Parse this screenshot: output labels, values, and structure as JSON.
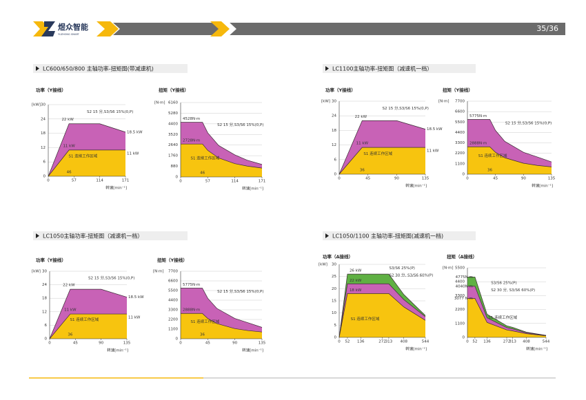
{
  "header": {
    "brand": "煜众智能",
    "brand_en": "YUZHONG SMART",
    "page": "35/36"
  },
  "sections": [
    {
      "title": "LC600/650/800 主轴功率-扭矩图(带减速机)"
    },
    {
      "title": "LC1100主轴功率-扭矩图（减速机一档）"
    },
    {
      "title": "LC1050主轴功率-扭矩图（减速机一档）"
    },
    {
      "title": "LC1050/1100 主轴功率-扭矩图(减速机一档)"
    }
  ],
  "chart_data": [
    {
      "type": "area",
      "title": "功率（Y接线）",
      "y_unit": "[kW]",
      "x_label": "转速[min⁻¹]",
      "x": [
        0,
        46,
        114,
        171
      ],
      "xlim": [
        0,
        171
      ],
      "xticks": [
        0,
        57,
        114,
        171
      ],
      "ylim": [
        0,
        30
      ],
      "yticks": [
        0,
        6,
        12,
        18,
        24,
        30
      ],
      "grid": true,
      "series": [
        {
          "name": "S2 15 分,S3/S6 15%(0,P)",
          "color": "#c862b6",
          "values": [
            0,
            22,
            22,
            18.5
          ]
        },
        {
          "name": "S1 连续工作区域",
          "color": "#f7c40f",
          "values": [
            0,
            11,
            11,
            11
          ]
        }
      ],
      "annotations": [
        "22 kW",
        "18.5 kW",
        "11 kW",
        "11 kW",
        "46"
      ]
    },
    {
      "type": "area",
      "title": "扭矩（Y接线）",
      "y_unit": "[N·m]",
      "x_label": "转速[min⁻¹]",
      "x": [
        0,
        46,
        57,
        80,
        114,
        140,
        171
      ],
      "xlim": [
        0,
        171
      ],
      "xticks": [
        0,
        57,
        114,
        171
      ],
      "ylim": [
        0,
        6160
      ],
      "yticks": [
        0,
        880,
        1760,
        2640,
        3520,
        4400,
        5280,
        6160
      ],
      "grid": true,
      "series": [
        {
          "name": "S2 15 分,S3/S6 15%(0,P)",
          "color": "#c862b6",
          "values": [
            4528,
            4528,
            3654,
            2604,
            1827,
            1385,
            1033
          ]
        },
        {
          "name": "S1 连续工作区域",
          "color": "#f7c40f",
          "values": [
            2728,
            2728,
            2201,
            1569,
            1101,
            897,
            734
          ]
        }
      ],
      "annotations": [
        "4528N·m",
        "2728N·m",
        "46"
      ]
    },
    {
      "type": "area",
      "title": "功率（Y接线）",
      "y_unit": "[kW]",
      "x_label": "转速[min⁻¹]",
      "x": [
        0,
        36,
        90,
        135
      ],
      "xlim": [
        0,
        135
      ],
      "xticks": [
        0,
        45,
        90,
        135
      ],
      "ylim": [
        0,
        30
      ],
      "yticks": [
        0,
        6,
        12,
        18,
        24,
        30
      ],
      "grid": true,
      "series": [
        {
          "name": "S2 15 分,S3/S6 15%(0,P)",
          "color": "#c862b6",
          "values": [
            0,
            22,
            22,
            18.5
          ]
        },
        {
          "name": "S1 连续工作区域",
          "color": "#f7c40f",
          "values": [
            0,
            11,
            11,
            11
          ]
        }
      ],
      "annotations": [
        "22 kW",
        "18.5 kW",
        "11 kW",
        "11 kW",
        "36"
      ]
    },
    {
      "type": "area",
      "title": "扭矩（Y接线）",
      "y_unit": "[N·m]",
      "x_label": "转速[min⁻¹]",
      "x": [
        0,
        36,
        45,
        60,
        90,
        112,
        135
      ],
      "xlim": [
        0,
        135
      ],
      "xticks": [
        0,
        45,
        90,
        135
      ],
      "ylim": [
        0,
        7700
      ],
      "yticks": [
        0,
        1100,
        2200,
        3300,
        4400,
        5500,
        6600,
        7700
      ],
      "grid": true,
      "series": [
        {
          "name": "S2 15 分,S3/S6 15%(0,P)",
          "color": "#c862b6",
          "values": [
            5775,
            5775,
            4620,
            3465,
            2310,
            1820,
            1295
          ]
        },
        {
          "name": "S1 连续工作区域",
          "color": "#f7c40f",
          "values": [
            2888,
            2888,
            2310,
            1733,
            1155,
            928,
            770
          ]
        }
      ],
      "annotations": [
        "5775N·m",
        "2888N·m",
        "36"
      ]
    },
    {
      "type": "area",
      "title": "功率（Y接线）",
      "y_unit": "[kW]",
      "x_label": "转速[min⁻¹]",
      "x": [
        0,
        36,
        90,
        135
      ],
      "xlim": [
        0,
        135
      ],
      "xticks": [
        0,
        45,
        90,
        135
      ],
      "ylim": [
        0,
        30
      ],
      "yticks": [
        0,
        6,
        12,
        18,
        24,
        30
      ],
      "grid": true,
      "series": [
        {
          "name": "S2 15 分,S3/S6 15%(0,P)",
          "color": "#c862b6",
          "values": [
            0,
            22,
            22,
            18.5
          ]
        },
        {
          "name": "S1 连续工作区域",
          "color": "#f7c40f",
          "values": [
            0,
            11,
            11,
            11
          ]
        }
      ],
      "annotations": [
        "22 kW",
        "18.5 kW",
        "11 kW",
        "11 kW",
        "36"
      ]
    },
    {
      "type": "area",
      "title": "扭矩（Y接线）",
      "y_unit": "[N·m]",
      "x_label": "转速[min⁻¹]",
      "x": [
        0,
        36,
        45,
        60,
        90,
        112,
        135
      ],
      "xlim": [
        0,
        135
      ],
      "xticks": [
        0,
        45,
        90,
        135
      ],
      "ylim": [
        0,
        7700
      ],
      "yticks": [
        0,
        1100,
        2200,
        3300,
        4400,
        5500,
        6600,
        7700
      ],
      "grid": true,
      "series": [
        {
          "name": "S2 15 分,S3/S6 15%(0,P)",
          "color": "#c862b6",
          "values": [
            5775,
            5775,
            4620,
            3465,
            2310,
            1820,
            1295
          ]
        },
        {
          "name": "S1 连续工作区域",
          "color": "#f7c40f",
          "values": [
            2888,
            2888,
            2310,
            1733,
            1155,
            928,
            770
          ]
        }
      ],
      "annotations": [
        "5775N·m",
        "2888N·m",
        "36"
      ]
    },
    {
      "type": "area",
      "title": "功率（Δ接线）",
      "y_unit": "[kW]",
      "x_label": "转速[min⁻¹]",
      "x": [
        0,
        52,
        136,
        272,
        313,
        408,
        544
      ],
      "xlim": [
        0,
        544
      ],
      "xticks": [
        0,
        52,
        136,
        272,
        313,
        408,
        544
      ],
      "ylim": [
        0,
        30
      ],
      "yticks": [
        0,
        5,
        10,
        15,
        20,
        25,
        30
      ],
      "grid": true,
      "series": [
        {
          "name": "S3/S6 25%(P)",
          "color": "#5fb043",
          "values": [
            0,
            26,
            26,
            26,
            26,
            17.6,
            9
          ]
        },
        {
          "name": "S2 30 分, S3/S6 60%(P)",
          "color": "#c862b6",
          "values": [
            0,
            22,
            22,
            22,
            22,
            15.5,
            8.5
          ]
        },
        {
          "name": "S1 连续工作区域",
          "color": "#f7c40f",
          "values": [
            0,
            18,
            18,
            18,
            18,
            12.5,
            7
          ]
        }
      ],
      "annotations": [
        "26 kW",
        "22 kW",
        "18 kW"
      ]
    },
    {
      "type": "area",
      "title": "扭矩（Δ接线）",
      "y_unit": "[N·m]",
      "x_label": "转速[min⁻¹]",
      "x": [
        0,
        52,
        136,
        272,
        313,
        408,
        544
      ],
      "xlim": [
        0,
        544
      ],
      "xticks": [
        0,
        52,
        136,
        272,
        313,
        408,
        544
      ],
      "ylim": [
        0,
        5500
      ],
      "yticks": [
        0,
        1100,
        2200,
        3300,
        4400,
        5500
      ],
      "grid": true,
      "series": [
        {
          "name": "S3/S6 25%(P)",
          "color": "#5fb043",
          "values": [
            4775,
            4775,
            1826,
            913,
            793,
            412,
            158
          ]
        },
        {
          "name": "S2 30 分, S3/S6 60%(P)",
          "color": "#c862b6",
          "values": [
            4040,
            4040,
            1545,
            772,
            671,
            363,
            149
          ]
        },
        {
          "name": "S1 连续工作区域",
          "color": "#f7c40f",
          "values": [
            3077,
            3077,
            1177,
            588,
            511,
            293,
            123
          ]
        }
      ],
      "annotations": [
        "4775N·m",
        "4040N·m",
        "3077 N·m"
      ]
    }
  ]
}
